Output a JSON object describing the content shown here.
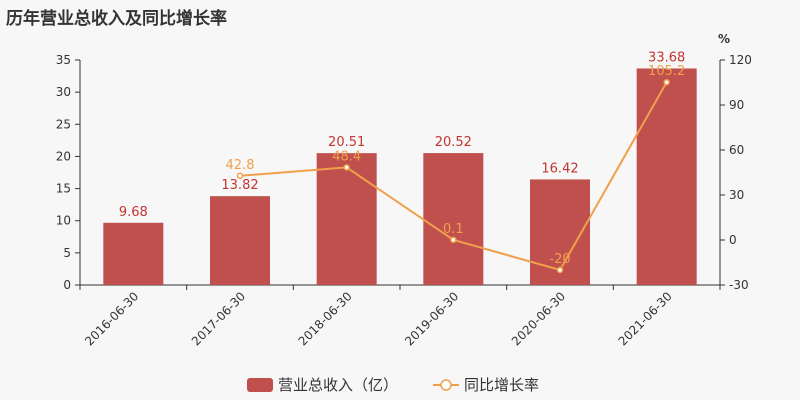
{
  "title": "历年营业总收入及同比增长率",
  "chart_data": {
    "type": "bar+line",
    "title": "历年营业总收入及同比增长率",
    "categories": [
      "2016-06-30",
      "2017-06-30",
      "2018-06-30",
      "2019-06-30",
      "2020-06-30",
      "2021-06-30"
    ],
    "series": [
      {
        "name": "营业总收入（亿）",
        "type": "bar",
        "axis": "left",
        "values": [
          9.68,
          13.82,
          20.51,
          20.52,
          16.42,
          33.68
        ],
        "labels": [
          "9.68",
          "13.82",
          "20.51",
          "20.52",
          "16.42",
          "33.68"
        ],
        "color": "#c0504d"
      },
      {
        "name": "同比增长率",
        "type": "line",
        "axis": "right",
        "values": [
          null,
          42.8,
          48.4,
          0.1,
          -20,
          105.2
        ],
        "labels": [
          "",
          "42.8",
          "48.4",
          "0.1",
          "-20",
          "105.2"
        ],
        "color": "#f0a04b"
      }
    ],
    "y_left": {
      "range": [
        0,
        35
      ],
      "ticks": [
        0,
        5,
        10,
        15,
        20,
        25,
        30,
        35
      ]
    },
    "y_right": {
      "range": [
        -30,
        120
      ],
      "ticks": [
        -30,
        0,
        30,
        60,
        90,
        120
      ],
      "unit": "%"
    },
    "grid": false,
    "legend": "bottom-center"
  }
}
